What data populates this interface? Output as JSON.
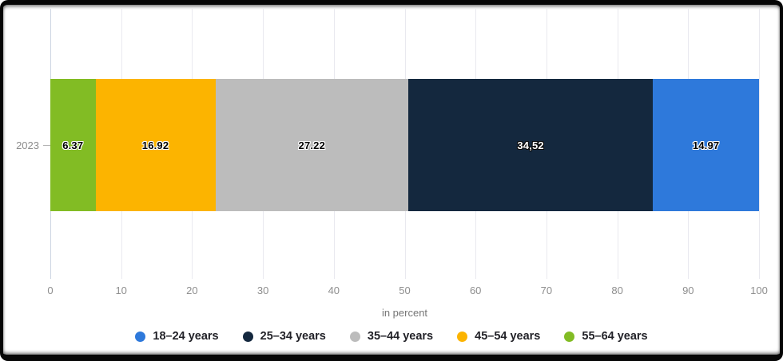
{
  "chart_data": {
    "type": "bar",
    "variant": "horizontal_stacked",
    "title": "",
    "category": "2023",
    "xlabel": "in percent",
    "xlim": [
      0,
      100
    ],
    "ticks": [
      0,
      10,
      20,
      30,
      40,
      50,
      60,
      70,
      80,
      90,
      100
    ],
    "grid": true,
    "legend_position": "bottom",
    "segments": [
      {
        "name": "55–64 years",
        "value": 6.37,
        "label": "6.37",
        "color": "#82BC24",
        "text_color": "#000000",
        "outline_color": "#ffffff"
      },
      {
        "name": "45–54 years",
        "value": 16.92,
        "label": "16.92",
        "color": "#FCB400",
        "text_color": "#000000",
        "outline_color": "#ffffff"
      },
      {
        "name": "35–44 years",
        "value": 27.22,
        "label": "27.22",
        "color": "#BCBCBC",
        "text_color": "#000000",
        "outline_color": "#ffffff"
      },
      {
        "name": "25–34 years",
        "value": 34.52,
        "label": "34,52",
        "color": "#14283E",
        "text_color": "#ffffff",
        "outline_color": "#0b0b0b"
      },
      {
        "name": "18–24 years",
        "value": 14.97,
        "label": "14.97",
        "color": "#2E79DB",
        "text_color": "#000000",
        "outline_color": "#ffffff"
      }
    ],
    "legend": [
      {
        "label": "18–24 years",
        "color": "#2E79DB"
      },
      {
        "label": "25–34 years",
        "color": "#14283E"
      },
      {
        "label": "35–44 years",
        "color": "#BCBCBC"
      },
      {
        "label": "45–54 years",
        "color": "#FCB400"
      },
      {
        "label": "55–64 years",
        "color": "#82BC24"
      }
    ]
  }
}
